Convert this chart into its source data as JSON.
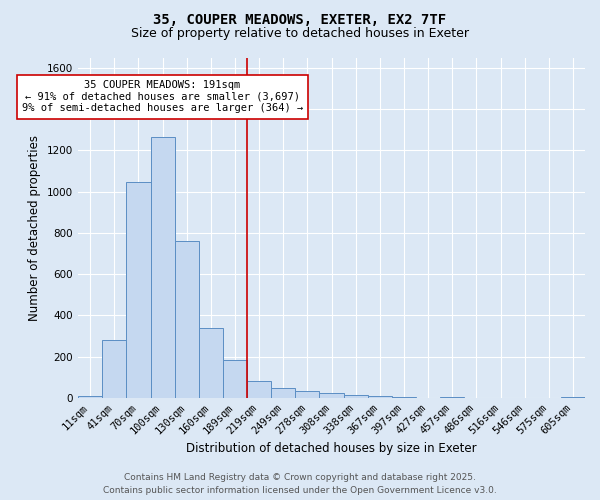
{
  "title_line1": "35, COUPER MEADOWS, EXETER, EX2 7TF",
  "title_line2": "Size of property relative to detached houses in Exeter",
  "xlabel": "Distribution of detached houses by size in Exeter",
  "ylabel": "Number of detached properties",
  "categories": [
    "11sqm",
    "41sqm",
    "70sqm",
    "100sqm",
    "130sqm",
    "160sqm",
    "189sqm",
    "219sqm",
    "249sqm",
    "278sqm",
    "308sqm",
    "338sqm",
    "367sqm",
    "397sqm",
    "427sqm",
    "457sqm",
    "486sqm",
    "516sqm",
    "546sqm",
    "575sqm",
    "605sqm"
  ],
  "values": [
    10,
    280,
    1045,
    1265,
    760,
    340,
    185,
    80,
    48,
    35,
    25,
    13,
    8,
    3,
    0,
    5,
    0,
    0,
    0,
    0,
    3
  ],
  "bar_color": "#c5d8f0",
  "bar_edge_color": "#5b8ec4",
  "vline_x_index": 6,
  "vline_color": "#cc0000",
  "annotation_text": "35 COUPER MEADOWS: 191sqm\n← 91% of detached houses are smaller (3,697)\n9% of semi-detached houses are larger (364) →",
  "annotation_box_color": "#ffffff",
  "annotation_box_edge_color": "#cc0000",
  "ylim": [
    0,
    1650
  ],
  "yticks": [
    0,
    200,
    400,
    600,
    800,
    1000,
    1200,
    1400,
    1600
  ],
  "bg_color": "#dce8f5",
  "plot_bg_color": "#dce8f5",
  "footer_line1": "Contains HM Land Registry data © Crown copyright and database right 2025.",
  "footer_line2": "Contains public sector information licensed under the Open Government Licence v3.0.",
  "title_fontsize": 10,
  "subtitle_fontsize": 9,
  "axis_label_fontsize": 8.5,
  "tick_fontsize": 7.5,
  "annotation_fontsize": 7.5,
  "footer_fontsize": 6.5
}
